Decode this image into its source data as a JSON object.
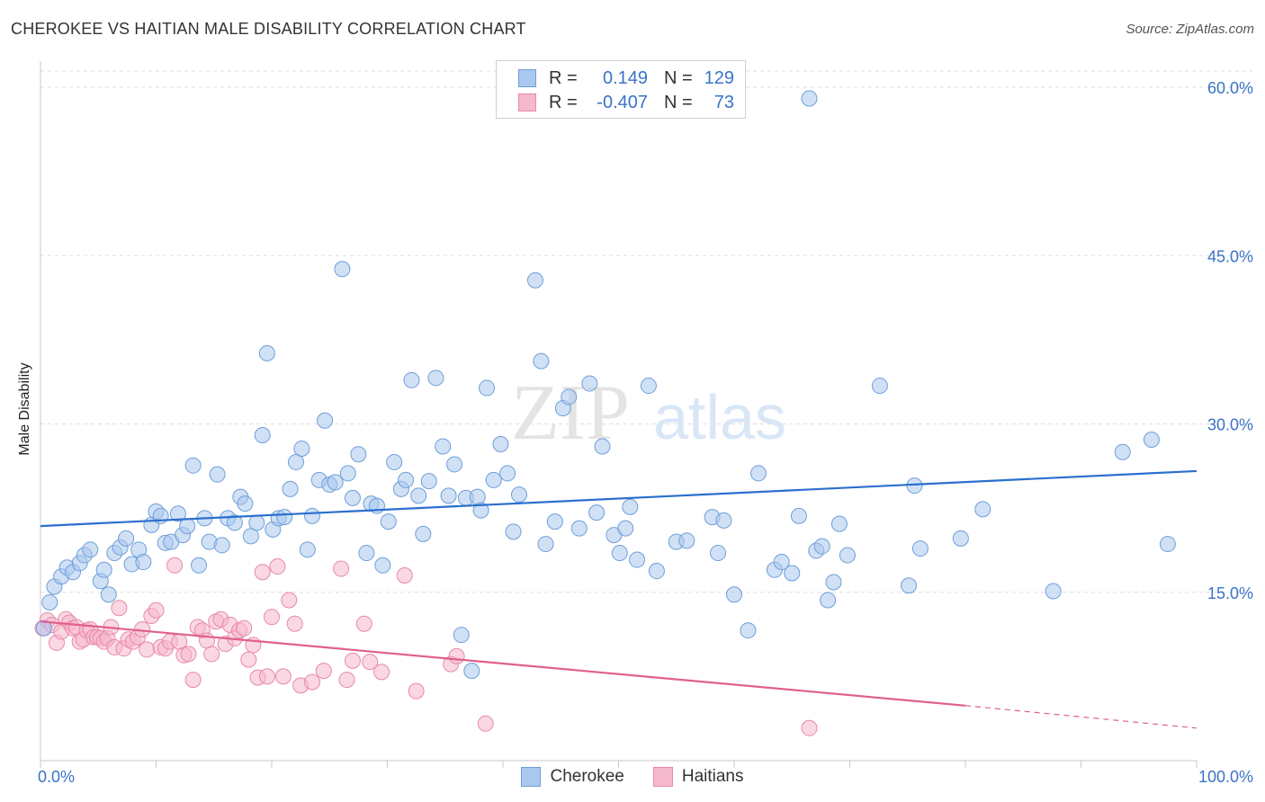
{
  "title": "CHEROKEE VS HAITIAN MALE DISABILITY CORRELATION CHART",
  "source": "Source: ZipAtlas.com",
  "watermark": {
    "zip": "ZIP",
    "atlas": "atlas"
  },
  "legend": {
    "rows": [
      {
        "r_label": "R =",
        "r_value": "0.149",
        "n_label": "N =",
        "n_value": "129"
      },
      {
        "r_label": "R =",
        "r_value": "-0.407",
        "n_label": "N =",
        "n_value": "73"
      }
    ]
  },
  "colors": {
    "cherokee_fill": "#aac8ef",
    "cherokee_stroke": "#6f9ed8",
    "cherokee_line": "#2b6fce",
    "haitians_fill": "#f5b8cc",
    "haitians_stroke": "#e888aa",
    "haitians_line": "#e05f8d",
    "axis_text": "#3a73c8",
    "grid": "#dddddd"
  },
  "chart_data": {
    "type": "scatter",
    "xlabel": "",
    "ylabel": "Male Disability",
    "xlim": [
      0,
      100
    ],
    "ylim": [
      0,
      60
    ],
    "x_tick_labels": [
      "0.0%",
      "100.0%"
    ],
    "y_ticks": [
      15,
      30,
      45,
      60
    ],
    "y_tick_labels": [
      "15.0%",
      "30.0%",
      "45.0%",
      "60.0%"
    ],
    "grid": "horizontal dashed",
    "legend_placement": "bottom",
    "series": [
      {
        "name": "Cherokee",
        "r": 0.149,
        "n": 129,
        "trend": {
          "x": [
            0,
            100
          ],
          "y": [
            20.9,
            25.8
          ]
        },
        "points": [
          [
            0.3,
            11.8
          ],
          [
            0.8,
            14.1
          ],
          [
            1.2,
            15.5
          ],
          [
            1.8,
            16.4
          ],
          [
            2.3,
            17.2
          ],
          [
            2.8,
            16.8
          ],
          [
            3.4,
            17.6
          ],
          [
            3.8,
            18.3
          ],
          [
            4.3,
            18.8
          ],
          [
            5.2,
            16.0
          ],
          [
            5.5,
            17.0
          ],
          [
            5.9,
            14.8
          ],
          [
            6.4,
            18.5
          ],
          [
            6.9,
            19.0
          ],
          [
            7.4,
            19.8
          ],
          [
            7.9,
            17.5
          ],
          [
            8.5,
            18.8
          ],
          [
            8.9,
            17.7
          ],
          [
            9.6,
            21.0
          ],
          [
            10.0,
            22.2
          ],
          [
            10.4,
            21.8
          ],
          [
            10.8,
            19.4
          ],
          [
            11.3,
            19.5
          ],
          [
            11.9,
            22.0
          ],
          [
            12.3,
            20.1
          ],
          [
            12.7,
            20.9
          ],
          [
            13.2,
            26.3
          ],
          [
            13.7,
            17.4
          ],
          [
            14.2,
            21.6
          ],
          [
            14.6,
            19.5
          ],
          [
            15.3,
            25.5
          ],
          [
            15.7,
            19.2
          ],
          [
            16.2,
            21.6
          ],
          [
            16.8,
            21.2
          ],
          [
            17.3,
            23.5
          ],
          [
            17.7,
            22.9
          ],
          [
            18.2,
            20.0
          ],
          [
            18.7,
            21.2
          ],
          [
            19.2,
            29.0
          ],
          [
            19.6,
            36.3
          ],
          [
            20.1,
            20.6
          ],
          [
            20.6,
            21.6
          ],
          [
            21.1,
            21.7
          ],
          [
            21.6,
            24.2
          ],
          [
            22.1,
            26.6
          ],
          [
            22.6,
            27.8
          ],
          [
            23.1,
            18.8
          ],
          [
            23.5,
            21.8
          ],
          [
            24.1,
            25.0
          ],
          [
            24.6,
            30.3
          ],
          [
            25.0,
            24.6
          ],
          [
            25.5,
            24.8
          ],
          [
            26.1,
            43.8
          ],
          [
            26.6,
            25.6
          ],
          [
            27.0,
            23.4
          ],
          [
            27.5,
            27.3
          ],
          [
            28.2,
            18.5
          ],
          [
            28.6,
            22.9
          ],
          [
            29.1,
            22.7
          ],
          [
            29.6,
            17.4
          ],
          [
            30.1,
            21.3
          ],
          [
            30.6,
            26.6
          ],
          [
            31.2,
            24.2
          ],
          [
            31.6,
            25.0
          ],
          [
            32.1,
            33.9
          ],
          [
            32.7,
            23.6
          ],
          [
            33.1,
            20.2
          ],
          [
            33.6,
            24.9
          ],
          [
            34.2,
            34.1
          ],
          [
            34.8,
            28.0
          ],
          [
            35.3,
            23.6
          ],
          [
            35.8,
            26.4
          ],
          [
            36.4,
            11.2
          ],
          [
            36.8,
            23.4
          ],
          [
            37.3,
            8.0
          ],
          [
            37.8,
            23.5
          ],
          [
            38.1,
            22.3
          ],
          [
            38.6,
            33.2
          ],
          [
            39.2,
            25.0
          ],
          [
            39.8,
            28.2
          ],
          [
            40.4,
            25.6
          ],
          [
            40.9,
            20.4
          ],
          [
            41.4,
            23.7
          ],
          [
            42.8,
            42.8
          ],
          [
            43.3,
            35.6
          ],
          [
            44.5,
            21.3
          ],
          [
            45.2,
            31.4
          ],
          [
            45.7,
            32.4
          ],
          [
            46.6,
            20.7
          ],
          [
            47.5,
            33.6
          ],
          [
            48.1,
            22.1
          ],
          [
            48.6,
            28.0
          ],
          [
            49.6,
            20.1
          ],
          [
            50.1,
            18.5
          ],
          [
            50.6,
            20.7
          ],
          [
            51.0,
            22.6
          ],
          [
            51.6,
            17.9
          ],
          [
            52.6,
            33.4
          ],
          [
            55.0,
            19.5
          ],
          [
            55.9,
            19.6
          ],
          [
            58.1,
            21.7
          ],
          [
            58.6,
            18.5
          ],
          [
            59.1,
            21.4
          ],
          [
            60.0,
            14.8
          ],
          [
            61.2,
            11.6
          ],
          [
            62.1,
            25.6
          ],
          [
            63.5,
            17.0
          ],
          [
            64.1,
            17.7
          ],
          [
            65.0,
            16.7
          ],
          [
            65.6,
            21.8
          ],
          [
            66.5,
            59.0
          ],
          [
            67.1,
            18.7
          ],
          [
            67.6,
            19.1
          ],
          [
            68.1,
            14.3
          ],
          [
            68.6,
            15.9
          ],
          [
            69.1,
            21.1
          ],
          [
            72.6,
            33.4
          ],
          [
            75.1,
            15.6
          ],
          [
            75.6,
            24.5
          ],
          [
            76.1,
            18.9
          ],
          [
            79.6,
            19.8
          ],
          [
            81.5,
            22.4
          ],
          [
            87.6,
            15.1
          ],
          [
            93.6,
            27.5
          ],
          [
            96.1,
            28.6
          ],
          [
            97.5,
            19.3
          ],
          [
            53.3,
            16.9
          ],
          [
            43.7,
            19.3
          ],
          [
            69.8,
            18.3
          ]
        ]
      },
      {
        "name": "Haitians",
        "r": -0.407,
        "n": 73,
        "trend": {
          "x": [
            0,
            80
          ],
          "y": [
            12.4,
            4.9
          ]
        },
        "trend_dashed": {
          "x": [
            80,
            100
          ],
          "y": [
            4.9,
            2.9
          ]
        },
        "points": [
          [
            0.2,
            11.8
          ],
          [
            0.6,
            12.5
          ],
          [
            1.0,
            12.1
          ],
          [
            1.4,
            10.5
          ],
          [
            1.8,
            11.5
          ],
          [
            2.2,
            12.6
          ],
          [
            2.5,
            12.3
          ],
          [
            2.8,
            11.8
          ],
          [
            3.1,
            11.9
          ],
          [
            3.4,
            10.6
          ],
          [
            3.7,
            10.8
          ],
          [
            4.0,
            11.6
          ],
          [
            4.3,
            11.7
          ],
          [
            4.6,
            11.0
          ],
          [
            4.9,
            11.0
          ],
          [
            5.2,
            10.9
          ],
          [
            5.5,
            10.6
          ],
          [
            5.8,
            10.9
          ],
          [
            6.1,
            11.9
          ],
          [
            6.4,
            10.1
          ],
          [
            6.8,
            13.6
          ],
          [
            7.2,
            10.0
          ],
          [
            7.6,
            10.8
          ],
          [
            8.0,
            10.6
          ],
          [
            8.4,
            11.0
          ],
          [
            8.8,
            11.7
          ],
          [
            9.2,
            9.9
          ],
          [
            9.6,
            12.9
          ],
          [
            10.0,
            13.4
          ],
          [
            10.4,
            10.1
          ],
          [
            10.8,
            10.0
          ],
          [
            11.2,
            10.6
          ],
          [
            11.6,
            17.4
          ],
          [
            12.0,
            10.6
          ],
          [
            12.4,
            9.4
          ],
          [
            12.8,
            9.5
          ],
          [
            13.2,
            7.2
          ],
          [
            13.6,
            11.9
          ],
          [
            14.0,
            11.6
          ],
          [
            14.4,
            10.7
          ],
          [
            14.8,
            9.5
          ],
          [
            15.2,
            12.4
          ],
          [
            15.6,
            12.6
          ],
          [
            16.0,
            10.4
          ],
          [
            16.4,
            12.1
          ],
          [
            16.8,
            10.9
          ],
          [
            17.2,
            11.6
          ],
          [
            17.6,
            11.8
          ],
          [
            18.0,
            9.0
          ],
          [
            18.4,
            10.3
          ],
          [
            18.8,
            7.4
          ],
          [
            19.2,
            16.8
          ],
          [
            19.6,
            7.5
          ],
          [
            20.0,
            12.8
          ],
          [
            20.5,
            17.3
          ],
          [
            21.0,
            7.5
          ],
          [
            21.5,
            14.3
          ],
          [
            22.0,
            12.2
          ],
          [
            22.5,
            6.7
          ],
          [
            23.5,
            7.0
          ],
          [
            24.5,
            8.0
          ],
          [
            26.0,
            17.1
          ],
          [
            26.5,
            7.2
          ],
          [
            27.0,
            8.9
          ],
          [
            28.0,
            12.2
          ],
          [
            28.5,
            8.8
          ],
          [
            29.5,
            7.9
          ],
          [
            31.5,
            16.5
          ],
          [
            32.5,
            6.2
          ],
          [
            35.5,
            8.6
          ],
          [
            36.0,
            9.3
          ],
          [
            38.5,
            3.3
          ],
          [
            66.5,
            2.9
          ]
        ]
      }
    ]
  }
}
